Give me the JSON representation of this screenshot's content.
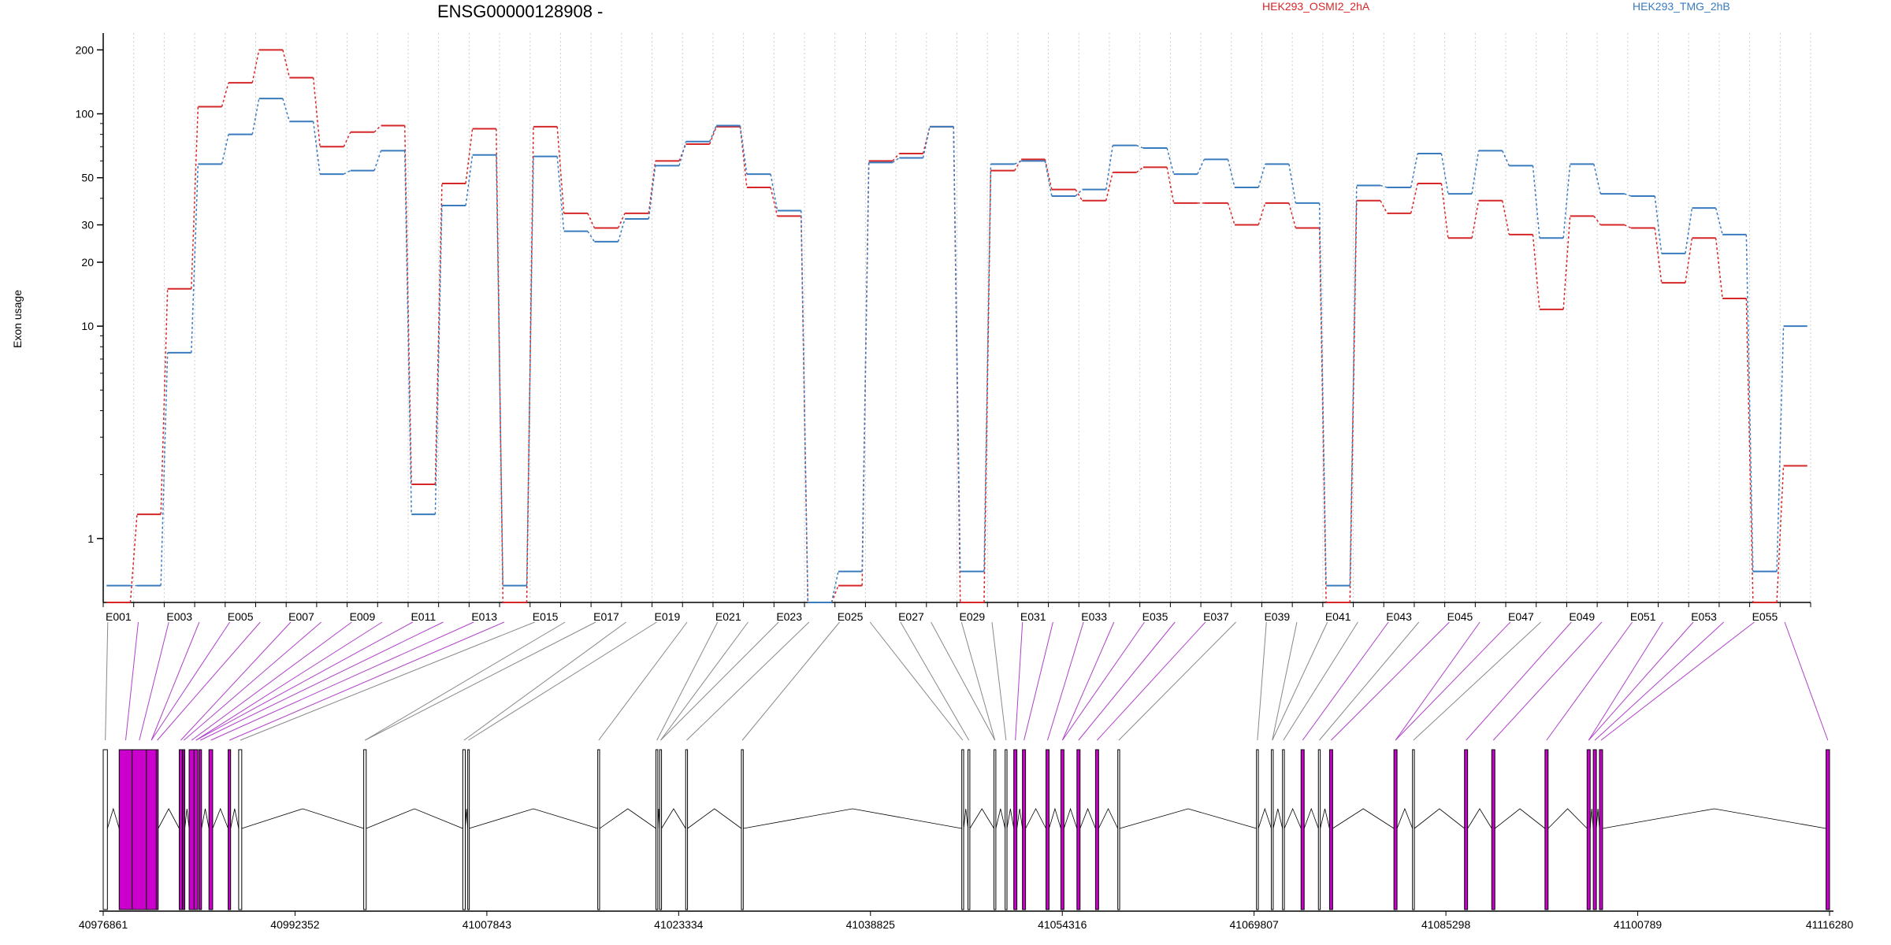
{
  "figure": {
    "title": "ENSG00000128908 -",
    "ylabel": "Exon usage"
  },
  "chart_data": {
    "type": "line",
    "title": "ENSG00000128908 -",
    "xlabel": "",
    "ylabel": "Exon usage",
    "yscale": "log",
    "ylim": [
      0.5,
      240
    ],
    "y_ticks": [
      1,
      10,
      20,
      30,
      50,
      100,
      200
    ],
    "grid": "vertical dotted lines at each exon boundary",
    "legend": "top-right, text only",
    "categories": [
      "E001",
      "E002",
      "E003",
      "E004",
      "E005",
      "E006",
      "E007",
      "E008",
      "E009",
      "E010",
      "E011",
      "E012",
      "E013",
      "E014",
      "E015",
      "E016",
      "E017",
      "E018",
      "E019",
      "E020",
      "E021",
      "E022",
      "E023",
      "E024",
      "E025",
      "E026",
      "E027",
      "E028",
      "E029",
      "E030",
      "E031",
      "E032",
      "E033",
      "E034",
      "E035",
      "E036",
      "E037",
      "E038",
      "E039",
      "E040",
      "E041",
      "E042",
      "E043",
      "E044",
      "E045",
      "E046",
      "E047",
      "E048",
      "E049",
      "E050",
      "E051",
      "E052",
      "E053",
      "E054",
      "E055",
      "E056"
    ],
    "x_tick_labels": [
      "E001",
      "E003",
      "E005",
      "E007",
      "E009",
      "E011",
      "E013",
      "E015",
      "E017",
      "E019",
      "E021",
      "E023",
      "E025",
      "E027",
      "E029",
      "E031",
      "E033",
      "E035",
      "E037",
      "E039",
      "E041",
      "E043",
      "E045",
      "E047",
      "E049",
      "E051",
      "E053",
      "E055"
    ],
    "series": [
      {
        "name": "HEK293_OSMI2_2hA",
        "color": "#d62728",
        "values": [
          0.5,
          1.3,
          15,
          108,
          140,
          200,
          148,
          70,
          82,
          88,
          1.8,
          47,
          85,
          0.5,
          87,
          34,
          29,
          34,
          60,
          72,
          87,
          45,
          33,
          0.5,
          0.6,
          60,
          65,
          87,
          0.5,
          54,
          61,
          44,
          39,
          53,
          56,
          38,
          38,
          30,
          38,
          29,
          0.5,
          39,
          34,
          47,
          26,
          39,
          27,
          12,
          33,
          30,
          29,
          16,
          26,
          13.5,
          0.5,
          2.2
        ]
      },
      {
        "name": "HEK293_TMG_2hB",
        "color": "#3a7bbf",
        "values": [
          0.6,
          0.6,
          7.5,
          58,
          80,
          118,
          92,
          52,
          54,
          67,
          1.3,
          37,
          64,
          0.6,
          63,
          28,
          25,
          32,
          57,
          74,
          88,
          52,
          35,
          0.5,
          0.7,
          59,
          62,
          87,
          0.7,
          58,
          60,
          41,
          44,
          71,
          69,
          52,
          61,
          45,
          58,
          38,
          0.6,
          46,
          45,
          65,
          42,
          67,
          57,
          26,
          58,
          42,
          41,
          22,
          36,
          27,
          0.7,
          10
        ]
      }
    ],
    "genomic_axis": {
      "tick_labels": [
        "40976861",
        "40992352",
        "41007843",
        "41023334",
        "41038825",
        "41054316",
        "41069807",
        "41085298",
        "41100789",
        "41116280"
      ],
      "range": [
        40976861,
        41116280
      ],
      "exon_color_highlight": "#cc00cc",
      "exon_color_normal": "#000000"
    }
  }
}
